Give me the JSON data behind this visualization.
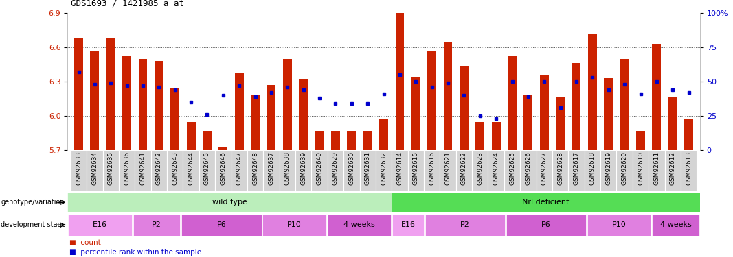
{
  "title": "GDS1693 / 1421985_a_at",
  "ylim_left": [
    5.7,
    6.9
  ],
  "ylim_right": [
    0,
    100
  ],
  "yticks_left": [
    5.7,
    6.0,
    6.3,
    6.6,
    6.9
  ],
  "yticks_right": [
    0,
    25,
    50,
    75,
    100
  ],
  "ytick_labels_right": [
    "0",
    "25",
    "50",
    "75",
    "100%"
  ],
  "bar_color": "#cc2200",
  "dot_color": "#0000cc",
  "bar_bottom": 5.7,
  "samples": [
    "GSM92633",
    "GSM92634",
    "GSM92635",
    "GSM92636",
    "GSM92641",
    "GSM92642",
    "GSM92643",
    "GSM92644",
    "GSM92645",
    "GSM92646",
    "GSM92647",
    "GSM92648",
    "GSM92637",
    "GSM92638",
    "GSM92639",
    "GSM92640",
    "GSM92629",
    "GSM92630",
    "GSM92631",
    "GSM92632",
    "GSM92614",
    "GSM92615",
    "GSM92616",
    "GSM92621",
    "GSM92622",
    "GSM92623",
    "GSM92624",
    "GSM92625",
    "GSM92626",
    "GSM92627",
    "GSM92628",
    "GSM92617",
    "GSM92618",
    "GSM92619",
    "GSM92620",
    "GSM92610",
    "GSM92611",
    "GSM92612",
    "GSM92613"
  ],
  "bar_values": [
    6.68,
    6.57,
    6.68,
    6.52,
    6.5,
    6.48,
    6.24,
    5.95,
    5.87,
    5.73,
    6.37,
    6.18,
    6.27,
    6.5,
    6.32,
    5.87,
    5.87,
    5.87,
    5.87,
    5.97,
    6.9,
    6.34,
    6.57,
    6.65,
    6.43,
    5.95,
    5.95,
    6.52,
    6.18,
    6.36,
    6.17,
    6.46,
    6.72,
    6.33,
    6.5,
    5.87,
    6.63,
    6.17,
    5.97
  ],
  "dot_values_pct": [
    57,
    48,
    49,
    47,
    47,
    46,
    44,
    35,
    26,
    40,
    47,
    39,
    42,
    46,
    44,
    38,
    34,
    34,
    34,
    41,
    55,
    50,
    46,
    49,
    40,
    25,
    23,
    50,
    39,
    50,
    31,
    50,
    53,
    44,
    48,
    41,
    50,
    44,
    42
  ],
  "genotype_groups": [
    {
      "label": "wild type",
      "start": 0,
      "end": 20,
      "color": "#bbeebb"
    },
    {
      "label": "Nrl deficient",
      "start": 20,
      "end": 39,
      "color": "#55dd55"
    }
  ],
  "dev_stage_groups": [
    {
      "label": "E16",
      "start": 0,
      "end": 4,
      "color": "#f0a0f0"
    },
    {
      "label": "P2",
      "start": 4,
      "end": 7,
      "color": "#e080e0"
    },
    {
      "label": "P6",
      "start": 7,
      "end": 12,
      "color": "#d060d0"
    },
    {
      "label": "P10",
      "start": 12,
      "end": 16,
      "color": "#e080e0"
    },
    {
      "label": "4 weeks",
      "start": 16,
      "end": 20,
      "color": "#d060d0"
    },
    {
      "label": "E16",
      "start": 20,
      "end": 22,
      "color": "#f0a0f0"
    },
    {
      "label": "P2",
      "start": 22,
      "end": 27,
      "color": "#e080e0"
    },
    {
      "label": "P6",
      "start": 27,
      "end": 32,
      "color": "#d060d0"
    },
    {
      "label": "P10",
      "start": 32,
      "end": 36,
      "color": "#e080e0"
    },
    {
      "label": "4 weeks",
      "start": 36,
      "end": 39,
      "color": "#d060d0"
    }
  ],
  "left_label_color": "#cc2200",
  "right_label_color": "#0000cc",
  "background_color": "#ffffff",
  "grid_color": "#555555",
  "legend_count_label": "count",
  "legend_pct_label": "percentile rank within the sample"
}
